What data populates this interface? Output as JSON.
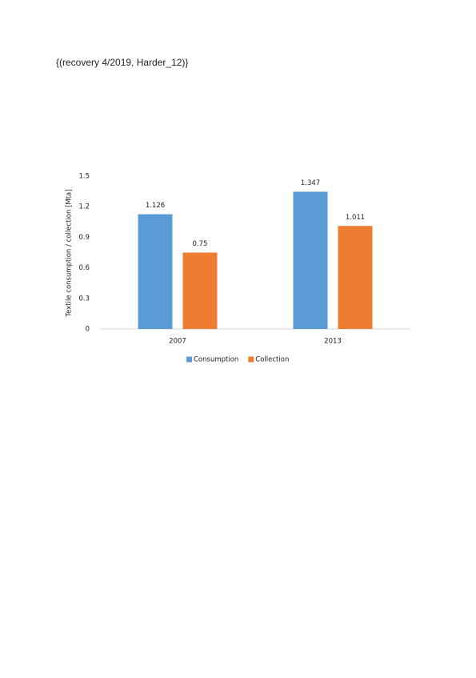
{
  "header": "{(recovery 4/2019, Harder_12)}",
  "chart_data": {
    "type": "bar",
    "y_label": "Textile consumption / collection [Mta]",
    "categories": [
      "2007",
      "2013"
    ],
    "series": [
      {
        "name": "Consumption",
        "color": "#5b9bd5",
        "values": [
          1.126,
          1.347
        ]
      },
      {
        "name": "Collection",
        "color": "#ed7d31",
        "values": [
          0.75,
          1.011
        ]
      }
    ],
    "ylim": [
      0,
      1.5
    ],
    "yticks": [
      0,
      0.3,
      0.6,
      0.9,
      1.2,
      1.5
    ],
    "grid": false,
    "legend": "bottom",
    "data_labels": true
  }
}
